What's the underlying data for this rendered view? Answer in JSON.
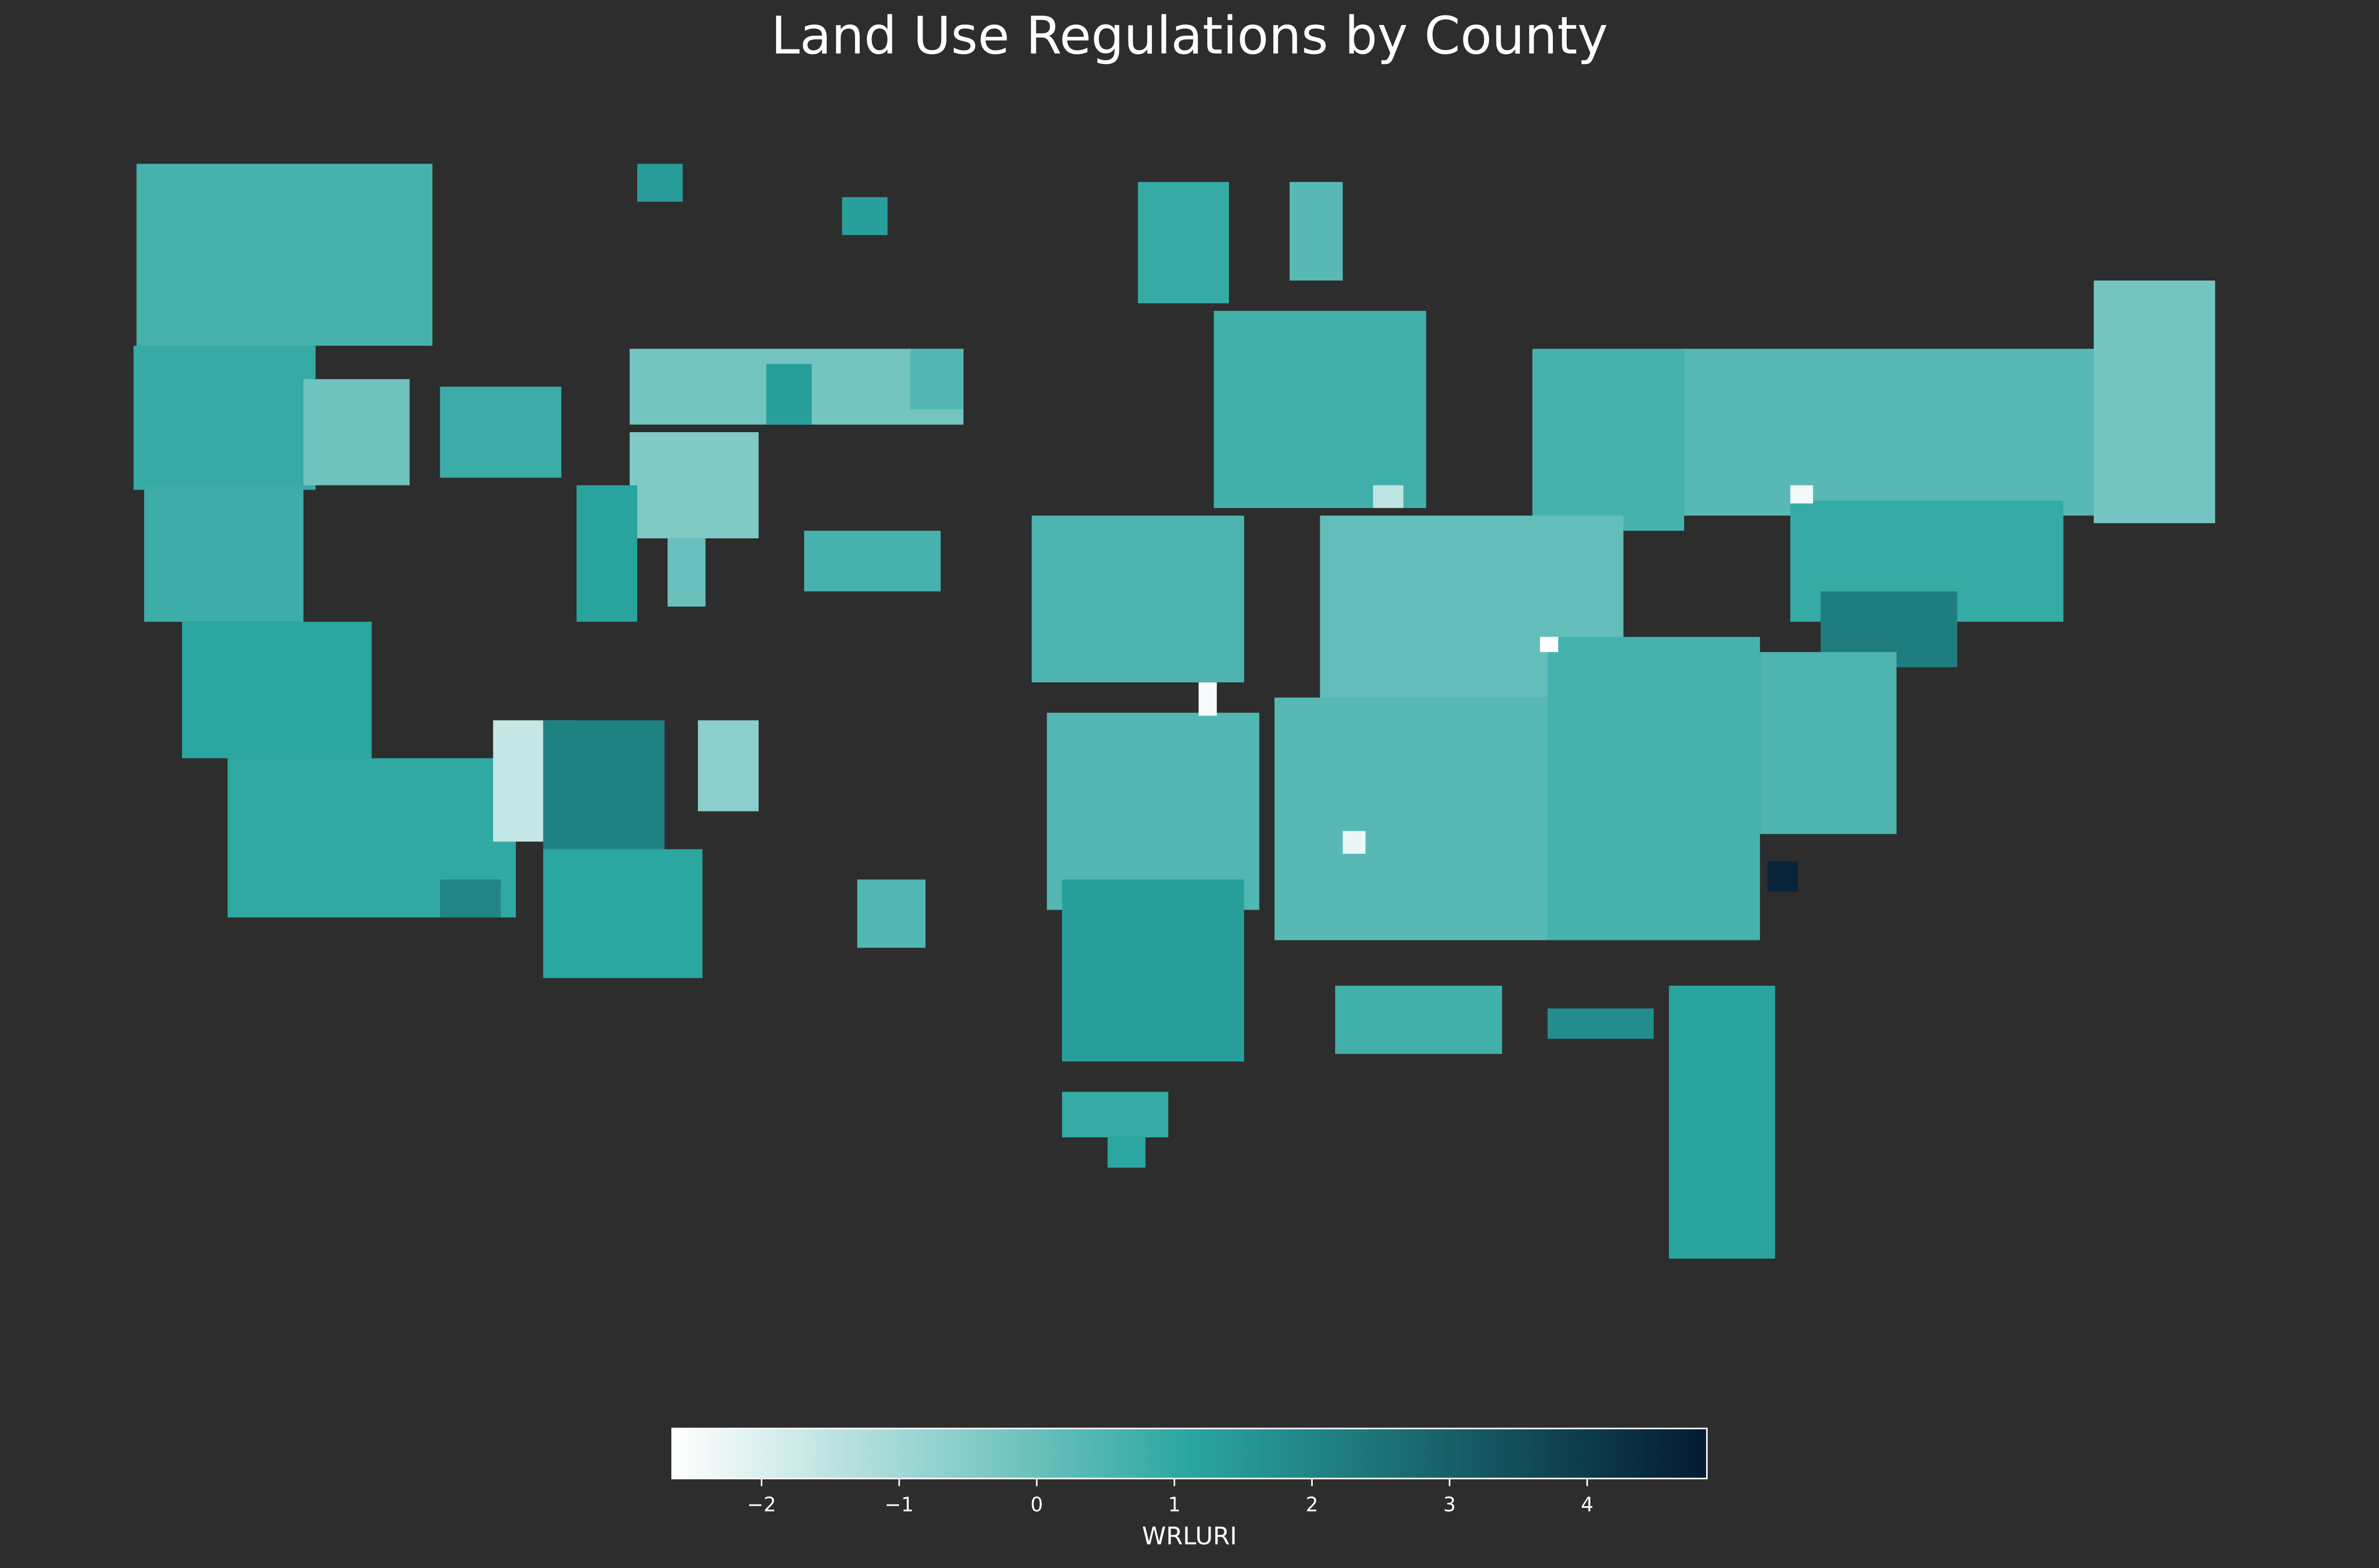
{
  "chart_data": {
    "type": "choropleth",
    "title": "Land Use Regulations by County",
    "colorbar_label": "WRLURI",
    "clim": [
      -2.65,
      4.87
    ],
    "cticks": [
      {
        "value": -2,
        "label": "−2"
      },
      {
        "value": -1,
        "label": "−1"
      },
      0,
      1,
      2,
      3,
      4
    ],
    "colors": [
      "#ffffff",
      "#2aa6a0",
      "#041a33"
    ],
    "background": "#2d2d2d",
    "values": [
      0.6,
      0.9,
      -0.1,
      0.8,
      -0.2,
      1.3,
      -0.4,
      0.8,
      1.1,
      1.0,
      2.0,
      -1.6,
      2.1,
      1.1,
      -0.6,
      1.2,
      0.0,
      0.6,
      0.4,
      1.4,
      0.9,
      0.3,
      0.7,
      0.6,
      0.3,
      -0.2,
      0.9,
      2.2,
      0.1,
      0.5,
      0.4,
      0.3,
      0.6,
      0.5,
      4.6,
      1.3,
      0.9,
      0.7,
      1.8,
      1.2,
      -2.4,
      -2.6,
      -2.5,
      -2.3,
      -1.5,
      1.1,
      0.4,
      1.3
    ]
  }
}
